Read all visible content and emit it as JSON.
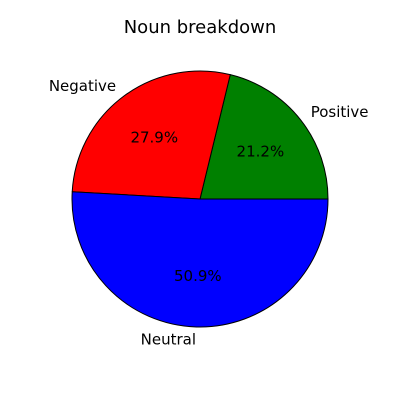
{
  "chart_data": {
    "type": "pie",
    "title": "Noun breakdown",
    "slices": [
      {
        "label": "Positive",
        "value": 21.2,
        "pct_label": "21.2%",
        "color": "#008000"
      },
      {
        "label": "Negative",
        "value": 27.9,
        "pct_label": "27.9%",
        "color": "#ff0000"
      },
      {
        "label": "Neutral",
        "value": 50.9,
        "pct_label": "50.9%",
        "color": "#0000ff"
      }
    ],
    "start_angle": 0,
    "direction": "counterclockwise",
    "edge_color": "#000000"
  }
}
